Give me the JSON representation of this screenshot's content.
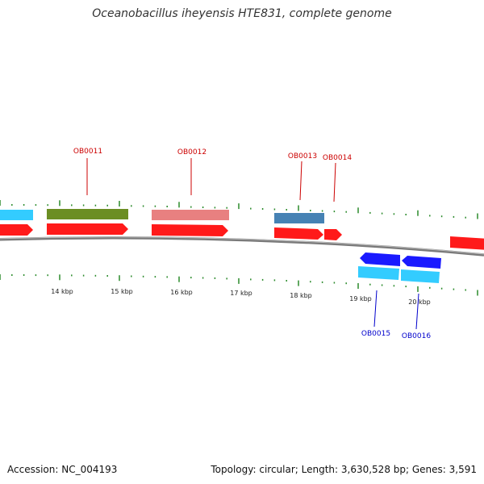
{
  "title": "Oceanobacillus iheyensis HTE831, complete genome",
  "accession": "Accession: NC_004193",
  "summary": "Topology: circular; Length: 3,630,528 bp; Genes: 3,591",
  "colors": {
    "forward_cds": "#ff1a1a",
    "reverse_cds": "#1a1aff",
    "forward_label": "#cc0000",
    "reverse_label": "#0000cc",
    "tick": "#2a8a2a",
    "backbone": "#888888",
    "cog_cyan": "#33ccff",
    "cog_olive": "#6b8e23",
    "cog_pink": "#e88080",
    "cog_steel": "#4682b4"
  },
  "scale_labels": [
    "14 kbp",
    "15 kbp",
    "16 kbp",
    "17 kbp",
    "18 kbp",
    "19 kbp",
    "20 kbp"
  ],
  "genes": [
    {
      "id": "OB0011",
      "strand": "forward"
    },
    {
      "id": "OB0012",
      "strand": "forward"
    },
    {
      "id": "OB0013",
      "strand": "forward"
    },
    {
      "id": "OB0014",
      "strand": "forward"
    },
    {
      "id": "OB0015",
      "strand": "reverse"
    },
    {
      "id": "OB0016",
      "strand": "reverse"
    }
  ]
}
